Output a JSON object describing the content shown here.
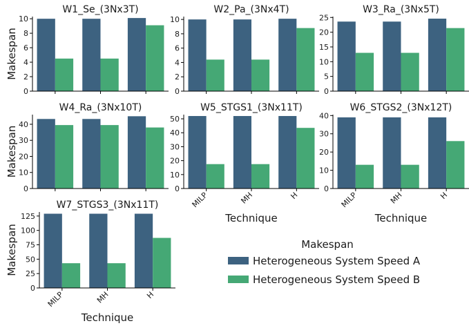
{
  "colors": {
    "series_a": "#3d6280",
    "series_b": "#45a875",
    "axis": "#000000"
  },
  "legend": {
    "title": "Makespan",
    "items": [
      "Heterogeneous System Speed A",
      "Heterogeneous System Speed B"
    ]
  },
  "axis_labels": {
    "y": "Makespan",
    "x": "Technique"
  },
  "chart_data": [
    {
      "type": "bar",
      "title": "W1_Se_(3Nx3T)",
      "categories": [
        "MILP",
        "MH",
        "H"
      ],
      "series": [
        {
          "name": "Heterogeneous System Speed A",
          "values": [
            10,
            10,
            10.1
          ]
        },
        {
          "name": "Heterogeneous System Speed B",
          "values": [
            4.5,
            4.5,
            9.1
          ]
        }
      ],
      "ylim": [
        0,
        10.3
      ],
      "yticks": [
        0,
        2,
        4,
        6,
        8,
        10
      ],
      "ylabel": "Makespan",
      "xlabel": "",
      "show_xticks": false
    },
    {
      "type": "bar",
      "title": "W2_Pa_(3Nx4T)",
      "categories": [
        "MILP",
        "MH",
        "H"
      ],
      "series": [
        {
          "name": "Heterogeneous System Speed A",
          "values": [
            10,
            10,
            10.1
          ]
        },
        {
          "name": "Heterogeneous System Speed B",
          "values": [
            4.4,
            4.4,
            8.8
          ]
        }
      ],
      "ylim": [
        0,
        10.4
      ],
      "yticks": [
        0,
        2,
        4,
        6,
        8,
        10
      ],
      "ylabel": "",
      "xlabel": "",
      "show_xticks": false
    },
    {
      "type": "bar",
      "title": "W3_Ra_(3Nx5T)",
      "categories": [
        "MILP",
        "MH",
        "H"
      ],
      "series": [
        {
          "name": "Heterogeneous System Speed A",
          "values": [
            23.6,
            23.6,
            24.6
          ]
        },
        {
          "name": "Heterogeneous System Speed B",
          "values": [
            13,
            13,
            21.4
          ]
        }
      ],
      "ylim": [
        0,
        25.3
      ],
      "yticks": [
        0,
        5,
        10,
        15,
        20,
        25
      ],
      "ylabel": "",
      "xlabel": "",
      "show_xticks": false
    },
    {
      "type": "bar",
      "title": "W4_Ra_(3Nx10T)",
      "categories": [
        "MILP",
        "MH",
        "H"
      ],
      "series": [
        {
          "name": "Heterogeneous System Speed A",
          "values": [
            43.3,
            43.3,
            45
          ]
        },
        {
          "name": "Heterogeneous System Speed B",
          "values": [
            39.5,
            39.5,
            38
          ]
        }
      ],
      "ylim": [
        0,
        46
      ],
      "yticks": [
        0,
        10,
        20,
        30,
        40
      ],
      "ylabel": "Makespan",
      "xlabel": "",
      "show_xticks": false
    },
    {
      "type": "bar",
      "title": "W5_STGS1_(3Nx11T)",
      "categories": [
        "MILP",
        "MH",
        "H"
      ],
      "series": [
        {
          "name": "Heterogeneous System Speed A",
          "values": [
            52,
            52,
            52
          ]
        },
        {
          "name": "Heterogeneous System Speed B",
          "values": [
            17.5,
            17.5,
            43.5
          ]
        }
      ],
      "ylim": [
        0,
        53
      ],
      "yticks": [
        0,
        10,
        20,
        30,
        40,
        50
      ],
      "ylabel": "",
      "xlabel": "Technique",
      "show_xticks": true
    },
    {
      "type": "bar",
      "title": "W6_STGS2_(3Nx12T)",
      "categories": [
        "MILP",
        "MH",
        "H"
      ],
      "series": [
        {
          "name": "Heterogeneous System Speed A",
          "values": [
            39,
            39,
            39
          ]
        },
        {
          "name": "Heterogeneous System Speed B",
          "values": [
            13,
            13,
            26
          ]
        }
      ],
      "ylim": [
        0,
        40.5
      ],
      "yticks": [
        0,
        10,
        20,
        30,
        40
      ],
      "ylabel": "",
      "xlabel": "Technique",
      "show_xticks": true
    },
    {
      "type": "bar",
      "title": "W7_STGS3_(3Nx11T)",
      "categories": [
        "MILP",
        "MH",
        "H"
      ],
      "series": [
        {
          "name": "Heterogeneous System Speed A",
          "values": [
            129,
            129,
            129
          ]
        },
        {
          "name": "Heterogeneous System Speed B",
          "values": [
            43,
            43,
            87
          ]
        }
      ],
      "ylim": [
        0,
        132
      ],
      "yticks": [
        0,
        25,
        50,
        75,
        100,
        125
      ],
      "ylabel": "Makespan",
      "xlabel": "Technique",
      "show_xticks": true
    }
  ]
}
